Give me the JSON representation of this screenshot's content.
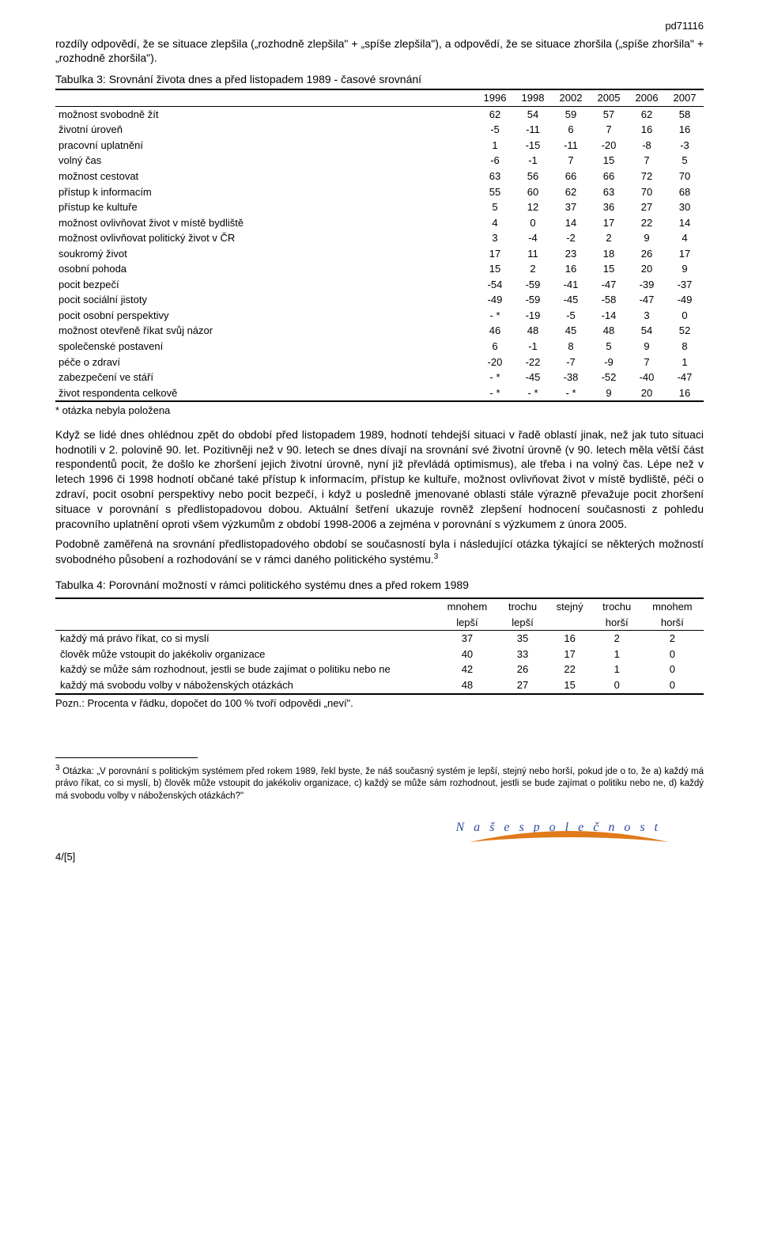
{
  "header_id": "pd71116",
  "intro": "rozdíly odpovědí, že se situace zlepšila („rozhodně zlepšila\" + „spíše zlepšila\"), a odpovědí, že se situace zhoršila („spíše zhoršila\" + „rozhodně zhoršila\").",
  "table3": {
    "title": "Tabulka 3: Srovnání života dnes a před listopadem 1989  - časové srovnání",
    "years": [
      "1996",
      "1998",
      "2002",
      "2005",
      "2006",
      "2007"
    ],
    "rows": [
      {
        "label": "možnost svobodně žít",
        "v": [
          "62",
          "54",
          "59",
          "57",
          "62",
          "58"
        ]
      },
      {
        "label": "životní úroveň",
        "v": [
          "-5",
          "-11",
          "6",
          "7",
          "16",
          "16"
        ]
      },
      {
        "label": "pracovní uplatnění",
        "v": [
          "1",
          "-15",
          "-11",
          "-20",
          "-8",
          "-3"
        ]
      },
      {
        "label": "volný čas",
        "v": [
          "-6",
          "-1",
          "7",
          "15",
          "7",
          "5"
        ]
      },
      {
        "label": "možnost cestovat",
        "v": [
          "63",
          "56",
          "66",
          "66",
          "72",
          "70"
        ]
      },
      {
        "label": "přístup k informacím",
        "v": [
          "55",
          "60",
          "62",
          "63",
          "70",
          "68"
        ]
      },
      {
        "label": "přístup ke kultuře",
        "v": [
          "5",
          "12",
          "37",
          "36",
          "27",
          "30"
        ]
      },
      {
        "label": "možnost ovlivňovat život v místě bydliště",
        "v": [
          "4",
          "0",
          "14",
          "17",
          "22",
          "14"
        ]
      },
      {
        "label": "možnost ovlivňovat politický život v ČR",
        "v": [
          "3",
          "-4",
          "-2",
          "2",
          "9",
          "4"
        ]
      },
      {
        "label": "soukromý život",
        "v": [
          "17",
          "11",
          "23",
          "18",
          "26",
          "17"
        ]
      },
      {
        "label": "osobní pohoda",
        "v": [
          "15",
          "2",
          "16",
          "15",
          "20",
          "9"
        ]
      },
      {
        "label": "pocit bezpečí",
        "v": [
          "-54",
          "-59",
          "-41",
          "-47",
          "-39",
          "-37"
        ]
      },
      {
        "label": "pocit sociální jistoty",
        "v": [
          "-49",
          "-59",
          "-45",
          "-58",
          "-47",
          "-49"
        ]
      },
      {
        "label": "pocit osobní perspektivy",
        "v": [
          "- *",
          "-19",
          "-5",
          "-14",
          "3",
          "0"
        ]
      },
      {
        "label": "možnost otevřeně říkat svůj názor",
        "v": [
          "46",
          "48",
          "45",
          "48",
          "54",
          "52"
        ]
      },
      {
        "label": "společenské postavení",
        "v": [
          "6",
          "-1",
          "8",
          "5",
          "9",
          "8"
        ]
      },
      {
        "label": "péče o zdraví",
        "v": [
          "-20",
          "-22",
          "-7",
          "-9",
          "7",
          "1"
        ]
      },
      {
        "label": "zabezpečení ve stáří",
        "v": [
          "- *",
          "-45",
          "-38",
          "-52",
          "-40",
          "-47"
        ]
      },
      {
        "label": "život respondenta celkově",
        "v": [
          "- *",
          "- *",
          "- *",
          "9",
          "20",
          "16"
        ]
      }
    ],
    "footnote": "* otázka nebyla položena"
  },
  "para1": "Když se lidé dnes ohlédnou zpět do období před listopadem 1989, hodnotí tehdejší situaci v řadě oblastí jinak, než jak tuto situaci hodnotili v 2. polovině 90. let. Pozitivněji než v 90. letech se dnes dívají na srovnání své životní úrovně (v 90. letech měla větší část respondentů pocit, že došlo ke zhoršení jejich životní úrovně, nyní již převládá optimismus), ale třeba i na volný čas. Lépe než v letech 1996 či 1998 hodnotí občané také přístup k informacím, přístup ke kultuře, možnost ovlivňovat život v místě bydliště, péči o zdraví, pocit osobní perspektivy nebo pocit bezpečí, i když u posledně jmenované oblasti stále výrazně převažuje pocit zhoršení situace v porovnání s předlistopadovou dobou. Aktuální šetření ukazuje rovněž zlepšení hodnocení současnosti z pohledu pracovního uplatnění oproti všem výzkumům z období 1998-2006 a zejména v porovnání s výzkumem z února 2005.",
  "para2_pre": "Podobně zaměřená na srovnání předlistopadového období se současností byla i následující otázka týkající se některých možností svobodného působení a rozhodování se v rámci daného politického systému.",
  "para2_sup": "3",
  "table4": {
    "title": "Tabulka 4: Porovnání možností v rámci politického systému dnes a před rokem 1989",
    "head_top": [
      "",
      "mnohem",
      "trochu",
      "stejný",
      "trochu",
      "mnohem"
    ],
    "head_bot": [
      "",
      "lepší",
      "lepší",
      "",
      "horší",
      "horší"
    ],
    "rows": [
      {
        "label": "každý má právo říkat, co si myslí",
        "v": [
          "37",
          "35",
          "16",
          "2",
          "2"
        ]
      },
      {
        "label": "člověk může vstoupit do jakékoliv organizace",
        "v": [
          "40",
          "33",
          "17",
          "1",
          "0"
        ]
      },
      {
        "label": "každý se může sám rozhodnout, jestli se bude zajímat o politiku nebo ne",
        "v": [
          "42",
          "26",
          "22",
          "1",
          "0"
        ]
      },
      {
        "label": "každý má svobodu volby v náboženských otázkách",
        "v": [
          "48",
          "27",
          "15",
          "0",
          "0"
        ]
      }
    ],
    "note": "Pozn.: Procenta v řádku, dopočet do 100 % tvoří odpovědi „neví\"."
  },
  "footnote3_num": "3",
  "footnote3": " Otázka: „V porovnání s politickým systémem před rokem 1989, řekl byste, že náš současný systém je lepší, stejný nebo horší, pokud jde o to, že a) každý má právo říkat, co si myslí, b) člověk může vstoupit do jakékoliv organizace, c) každý se může sám rozhodnout, jestli se bude zajímat o politiku nebo ne, d) každý má svobodu volby v náboženských otázkách?\"",
  "logo_text": "N a š e   s p o l e č n o s t",
  "page_num": "4/[5]",
  "colors": {
    "text": "#000000",
    "logo_text": "#2a4a9a",
    "swoosh": "#e07a1b"
  }
}
